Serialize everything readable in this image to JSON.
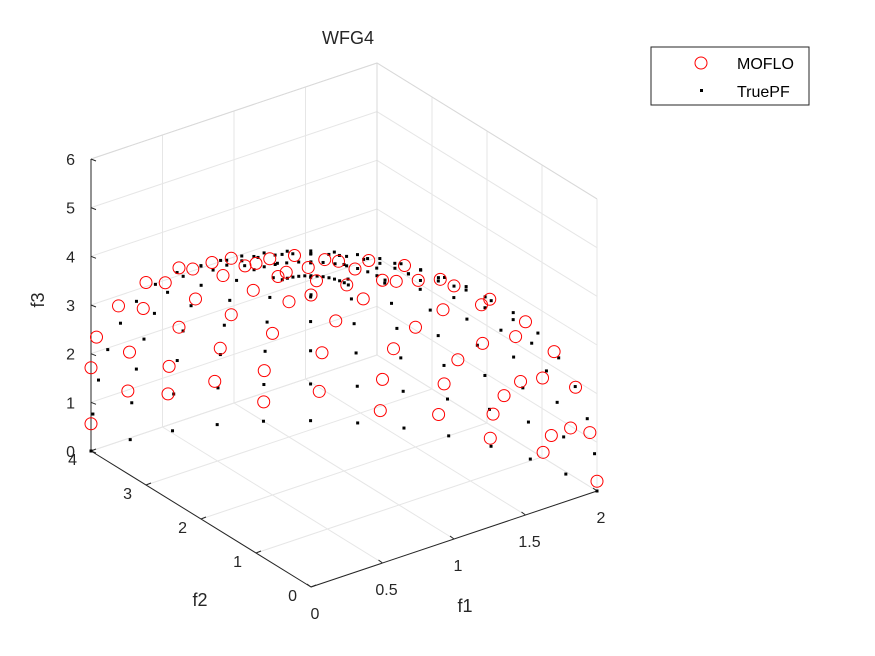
{
  "chart_data": {
    "type": "scatter",
    "title": "WFG4",
    "xlabel": "f1",
    "ylabel": "f2",
    "zlabel": "f3",
    "xlim": [
      0,
      2
    ],
    "ylim": [
      0,
      4
    ],
    "zlim": [
      0,
      6
    ],
    "x_ticks": [
      "0",
      "0.5",
      "1",
      "1.5",
      "2"
    ],
    "y_ticks": [
      "0",
      "1",
      "2",
      "3",
      "4"
    ],
    "z_ticks": [
      "0",
      "1",
      "2",
      "3",
      "4",
      "5",
      "6"
    ],
    "grid": true,
    "legend_position": "top-right",
    "series": [
      {
        "name": "MOFLO",
        "marker": "open-circle",
        "color": "#ff0000",
        "points": [
          [
            0.0,
            0.0,
            6.0
          ],
          [
            0.0,
            0.6,
            5.96
          ],
          [
            0.0,
            1.2,
            5.76
          ],
          [
            0.0,
            1.8,
            5.41
          ],
          [
            0.0,
            2.4,
            4.88
          ],
          [
            0.0,
            3.0,
            4.16
          ],
          [
            0.0,
            3.5,
            3.33
          ],
          [
            0.0,
            3.9,
            2.41
          ],
          [
            0.0,
            4.0,
            1.71
          ],
          [
            0.0,
            4.0,
            0.56
          ],
          [
            0.25,
            0.0,
            5.96
          ],
          [
            0.25,
            0.7,
            5.83
          ],
          [
            0.25,
            1.4,
            5.52
          ],
          [
            0.25,
            2.1,
            5.04
          ],
          [
            0.25,
            2.8,
            4.33
          ],
          [
            0.25,
            3.3,
            3.7
          ],
          [
            0.25,
            3.7,
            2.89
          ],
          [
            0.25,
            3.95,
            1.82
          ],
          [
            0.25,
            3.98,
            1.0
          ],
          [
            0.5,
            0.0,
            5.81
          ],
          [
            0.5,
            0.8,
            5.64
          ],
          [
            0.5,
            1.6,
            5.2
          ],
          [
            0.5,
            2.3,
            4.55
          ],
          [
            0.5,
            2.9,
            3.88
          ],
          [
            0.5,
            3.4,
            3.05
          ],
          [
            0.5,
            3.7,
            2.26
          ],
          [
            0.5,
            3.88,
            1.33
          ],
          [
            0.5,
            3.9,
            0.75
          ],
          [
            0.75,
            0.0,
            5.56
          ],
          [
            0.75,
            0.9,
            5.34
          ],
          [
            0.75,
            1.7,
            4.8
          ],
          [
            0.75,
            2.4,
            4.05
          ],
          [
            0.75,
            3.0,
            3.26
          ],
          [
            0.75,
            3.4,
            2.48
          ],
          [
            0.75,
            3.6,
            1.65
          ],
          [
            0.75,
            3.7,
            0.9
          ],
          [
            1.0,
            0.0,
            5.2
          ],
          [
            1.0,
            0.9,
            4.99
          ],
          [
            1.0,
            1.8,
            4.29
          ],
          [
            1.0,
            2.5,
            3.56
          ],
          [
            1.0,
            3.0,
            2.78
          ],
          [
            1.0,
            3.3,
            1.92
          ],
          [
            1.0,
            3.45,
            1.05
          ],
          [
            1.0,
            3.46,
            0.4
          ],
          [
            1.25,
            0.0,
            4.68
          ],
          [
            1.25,
            0.9,
            4.46
          ],
          [
            1.25,
            1.7,
            3.86
          ],
          [
            1.25,
            2.3,
            3.08
          ],
          [
            1.25,
            2.8,
            2.28
          ],
          [
            1.25,
            3.05,
            1.45
          ],
          [
            1.25,
            3.1,
            0.62
          ],
          [
            1.5,
            0.0,
            3.97
          ],
          [
            1.5,
            0.8,
            3.76
          ],
          [
            1.5,
            1.5,
            3.17
          ],
          [
            1.5,
            2.0,
            2.46
          ],
          [
            1.5,
            2.4,
            1.74
          ],
          [
            1.5,
            2.6,
            0.97
          ],
          [
            1.5,
            2.64,
            0.3
          ],
          [
            1.7,
            0.0,
            3.16
          ],
          [
            1.7,
            0.7,
            2.98
          ],
          [
            1.7,
            1.3,
            2.42
          ],
          [
            1.7,
            1.75,
            1.77
          ],
          [
            1.7,
            2.0,
            1.1
          ],
          [
            1.7,
            2.1,
            0.4
          ],
          [
            1.85,
            0.0,
            2.28
          ],
          [
            1.85,
            0.6,
            2.05
          ],
          [
            1.85,
            1.0,
            1.7
          ],
          [
            1.85,
            1.3,
            1.2
          ],
          [
            1.85,
            1.5,
            0.68
          ],
          [
            1.85,
            1.55,
            0.15
          ],
          [
            1.95,
            0.0,
            1.25
          ],
          [
            1.95,
            0.35,
            1.1
          ],
          [
            1.95,
            0.7,
            0.7
          ],
          [
            1.95,
            0.85,
            0.25
          ],
          [
            2.0,
            0.0,
            0.2
          ]
        ]
      },
      {
        "name": "TruePF",
        "marker": "dot",
        "color": "#000000",
        "grid": {
          "n_phi": 13,
          "n_theta": 13
        }
      }
    ]
  },
  "legend": {
    "entries": [
      "MOFLO",
      "TruePF"
    ]
  }
}
